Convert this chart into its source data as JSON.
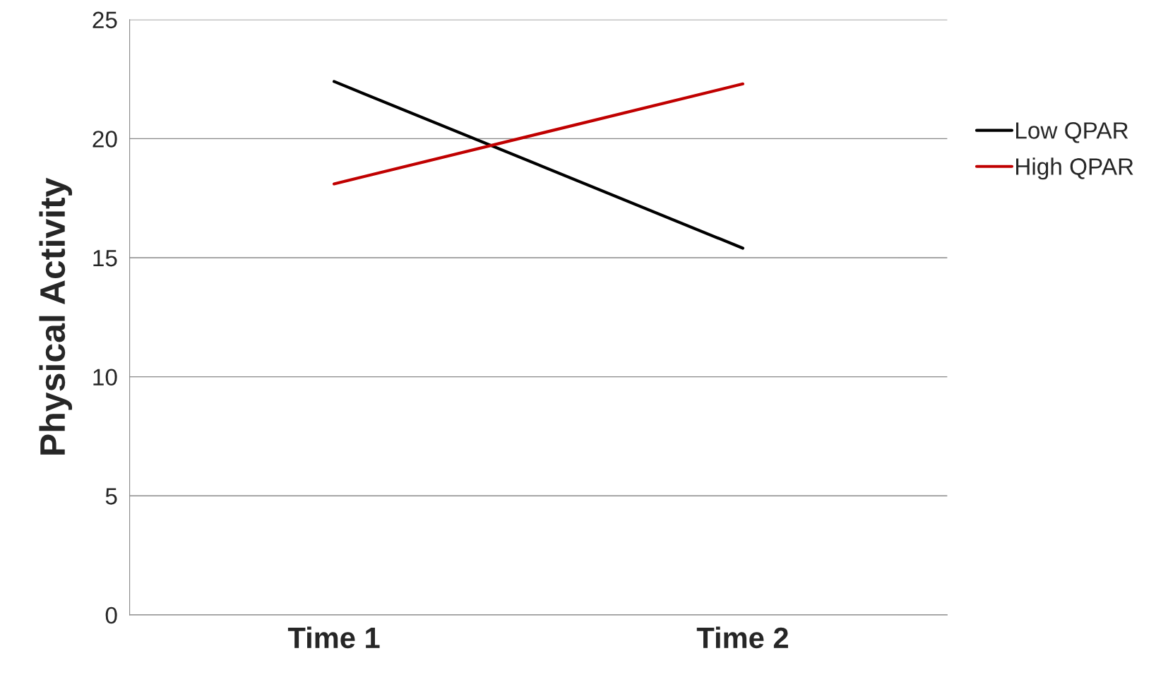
{
  "chart_data": {
    "type": "line",
    "ylabel": "Physical Activity",
    "categories": [
      "Time 1",
      "Time 2"
    ],
    "series": [
      {
        "name": "Low QPAR",
        "color": "#000000",
        "values": [
          22.4,
          15.4
        ]
      },
      {
        "name": "High QPAR",
        "color": "#c00000",
        "values": [
          18.1,
          22.3
        ]
      }
    ],
    "ylim": [
      0,
      25
    ],
    "yticks": [
      0,
      5,
      10,
      15,
      20,
      25
    ],
    "grid": "y",
    "legend": "right",
    "marker": "none",
    "line_style": "solid"
  }
}
